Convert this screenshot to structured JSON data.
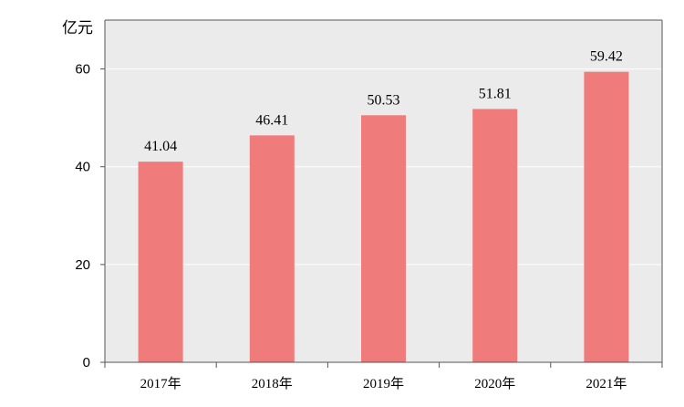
{
  "chart_data": {
    "type": "bar",
    "categories": [
      "2017年",
      "2018年",
      "2019年",
      "2020年",
      "2021年"
    ],
    "values": [
      41.04,
      46.41,
      50.53,
      51.81,
      59.42
    ],
    "value_labels": [
      "41.04",
      "46.41",
      "50.53",
      "51.81",
      "59.42"
    ],
    "unit": "亿元",
    "ylim": [
      0,
      70
    ],
    "yticks": [
      0,
      20,
      40,
      60
    ],
    "ytick_labels": [
      "0",
      "20",
      "40",
      "60"
    ],
    "grid": true,
    "legend": "none",
    "colors": {
      "bar": "#f07b7b",
      "plot_background": "#ebebeb",
      "gridline": "#ffffff",
      "axis": "#555555"
    }
  }
}
